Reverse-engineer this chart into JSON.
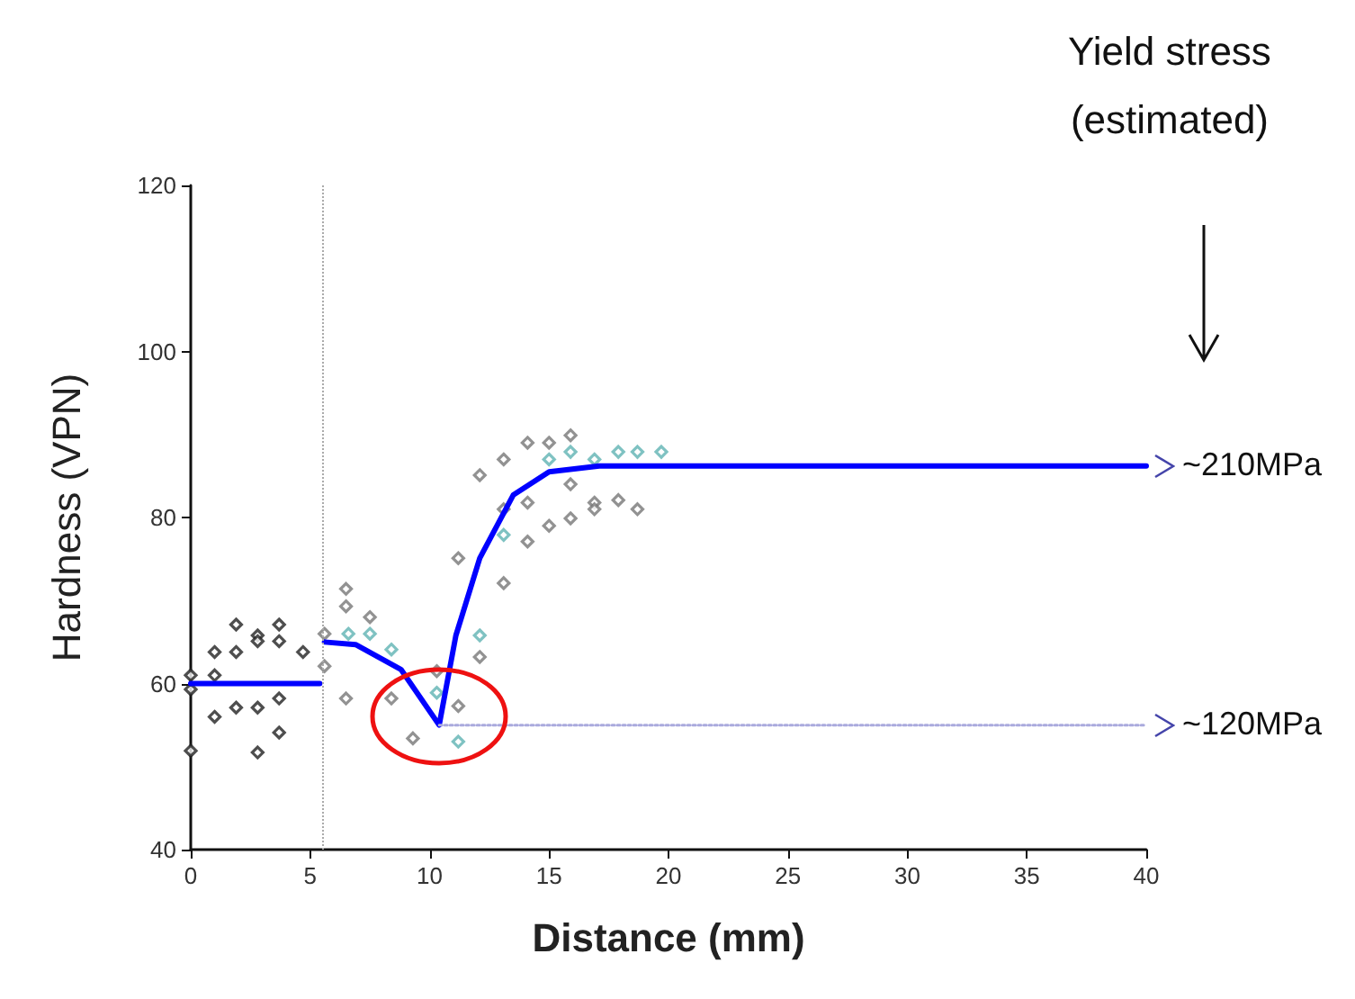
{
  "chart_data": {
    "type": "scatter",
    "xlabel": "Distance (mm)",
    "ylabel": "Hardness (VPN)",
    "xlim": [
      0,
      40
    ],
    "ylim": [
      40,
      120
    ],
    "xticks": [
      0,
      5,
      10,
      15,
      20,
      25,
      30,
      35,
      40
    ],
    "yticks": [
      40,
      60,
      80,
      100,
      120
    ],
    "marker": "diamond",
    "series": [
      {
        "color": "#222222",
        "x": [
          0,
          0,
          0,
          1,
          1,
          1,
          1.9,
          1.9,
          1.9,
          2.8,
          2.8,
          2.8,
          2.8,
          3.7,
          3.7,
          3.7,
          3.7,
          4.7
        ],
        "values": [
          61,
          59.3,
          51.9,
          63.8,
          61,
          56,
          67.1,
          63.8,
          57.1,
          51.7,
          65.8,
          65.1,
          57.1,
          67.1,
          65.1,
          58.2,
          54.1,
          63.8
        ]
      },
      {
        "color": "#777777",
        "x": [
          5.6,
          5.6,
          6.5,
          6.5,
          6.5,
          7.5,
          8.4,
          9.3,
          10.3,
          11.2,
          12.1,
          13.1,
          11.2,
          12.1,
          13.1,
          14.1,
          15,
          15.9,
          15.9,
          13.1,
          14.1,
          14.1,
          15,
          15.9,
          16.9,
          16.9,
          17.9,
          18.7
        ],
        "values": [
          66,
          62.1,
          71.4,
          69.3,
          58.2,
          68,
          58.2,
          53.4,
          61.5,
          57.3,
          63.2,
          72.1,
          75.1,
          85.1,
          87,
          89,
          89,
          89.9,
          84,
          81,
          81.8,
          77.1,
          79,
          79.9,
          81.8,
          81,
          82.1,
          81
        ]
      },
      {
        "color": "#5fb3b3",
        "x": [
          6.6,
          7.5,
          8.4,
          10.3,
          11.2,
          12.1,
          13.1,
          15,
          15.9,
          16.9,
          17.9,
          18.7,
          19.7
        ],
        "values": [
          66,
          66,
          64.1,
          58.9,
          53,
          65.8,
          77.9,
          87,
          87.9,
          87,
          87.9,
          87.9,
          87.9
        ]
      },
      {
        "type": "line",
        "color": "#0000ff",
        "marker": "none",
        "line_style": "solid",
        "x": [
          0,
          5.4
        ],
        "values": [
          60,
          60
        ]
      },
      {
        "type": "line",
        "color": "#0000ff",
        "marker": "none",
        "line_style": "solid",
        "x": [
          5.6,
          6.9,
          8.8,
          10.4,
          11.1,
          12.1,
          13.5,
          15,
          17.1,
          40
        ],
        "values": [
          65,
          64.7,
          61.7,
          55,
          65.8,
          75.1,
          82.7,
          85.5,
          86.2,
          86.2
        ]
      },
      {
        "type": "line",
        "color": "#aaaadd",
        "marker": "none",
        "line_style": "dotted",
        "x": [
          10.4,
          40
        ],
        "values": [
          55,
          55
        ]
      }
    ],
    "ref_lines": [
      {
        "axis": "x",
        "value": 5.5,
        "color": "#aaaaaa",
        "line_style": "dotted"
      }
    ],
    "annotations": [
      "Yield stress (estimated)",
      {
        "text": "~210MPa",
        "x": 40,
        "y": 86.2
      },
      {
        "text": "~120MPa",
        "x": 40,
        "y": 55
      }
    ]
  }
}
